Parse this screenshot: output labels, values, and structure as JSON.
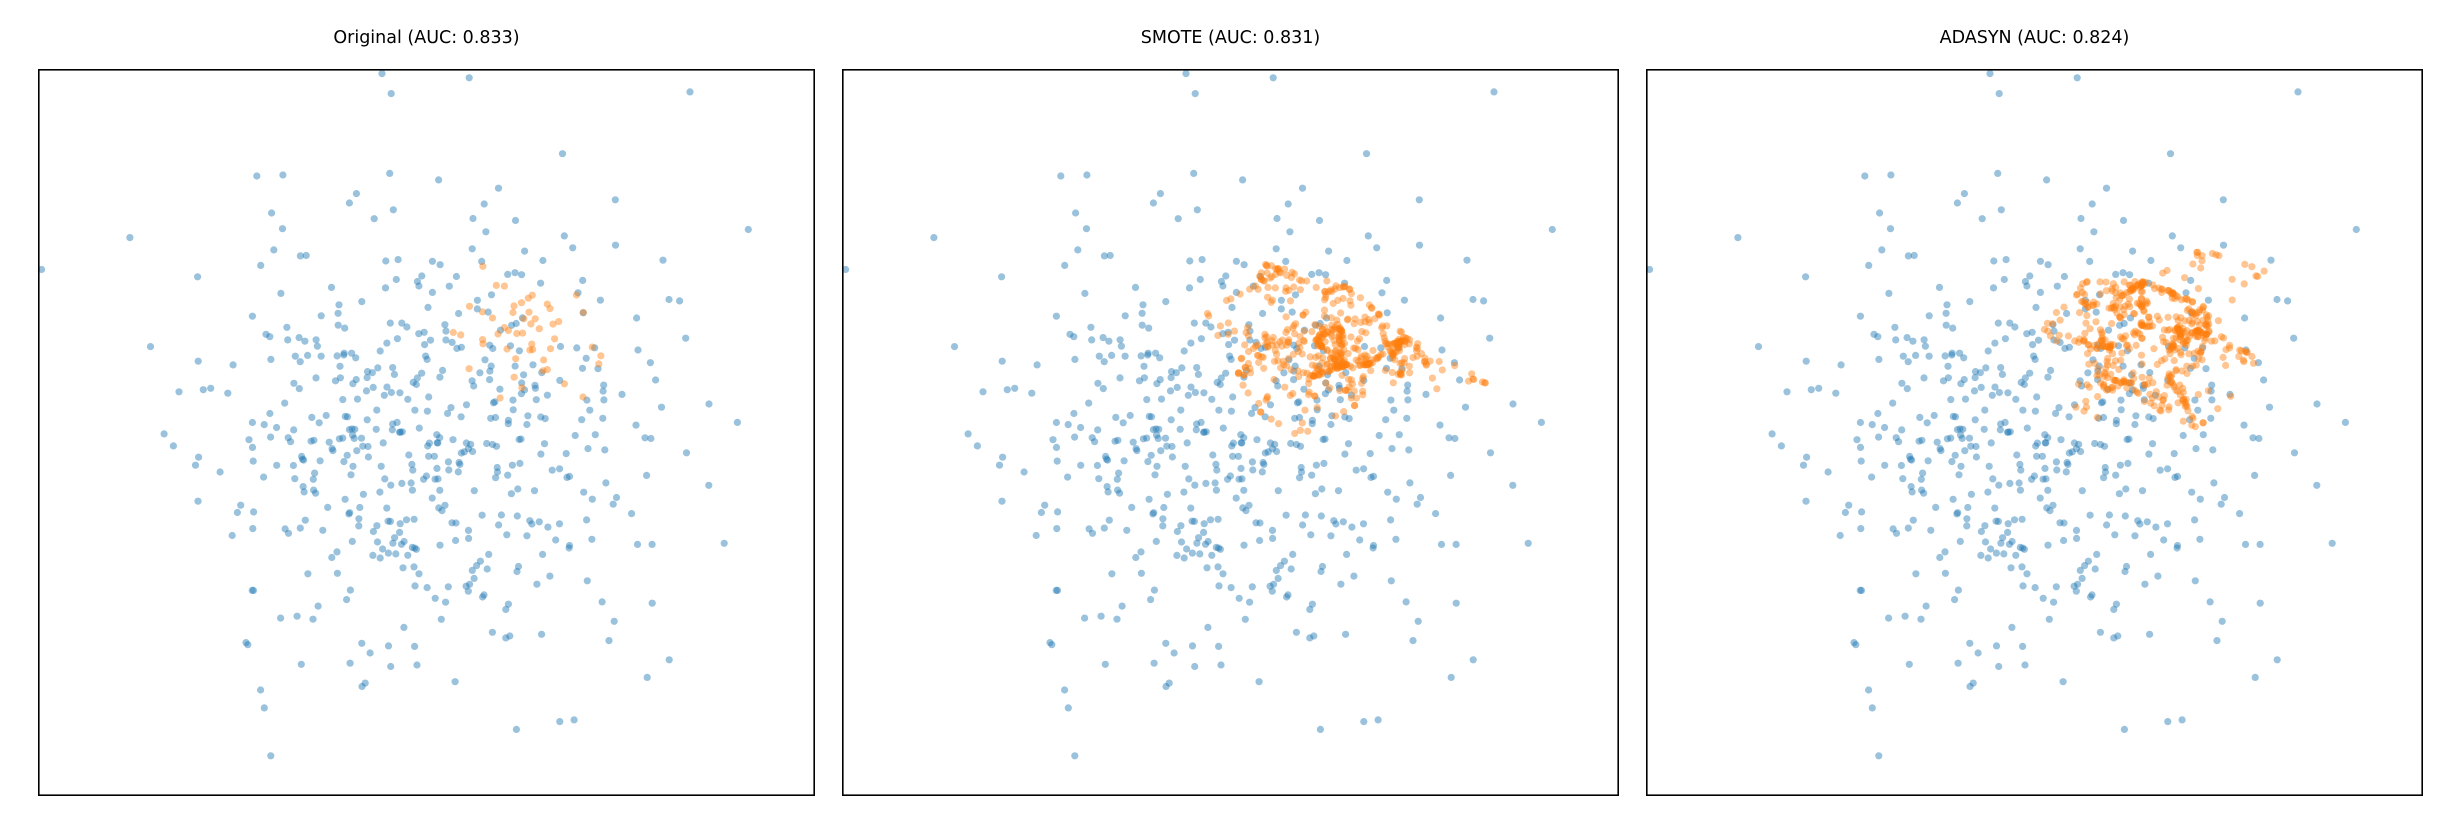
{
  "figure": {
    "panel_titles": [
      "Original (AUC: 0.833)",
      "SMOTE (AUC: 0.831)",
      "ADASYN (AUC: 0.824)"
    ]
  },
  "chart_data": [
    {
      "type": "scatter",
      "title": "Original (AUC: 0.833)",
      "xlim": [
        -3.5,
        3.5
      ],
      "ylim": [
        -3.2,
        3.2
      ],
      "axes_visible": false,
      "grid": false,
      "legend": "none",
      "series": [
        {
          "color": "#1f77b4",
          "alpha": 0.45,
          "count": 500,
          "cluster": {
            "center": [
              0.0,
              0.0
            ],
            "spread": [
              1.0,
              1.0
            ]
          },
          "seed": 11
        },
        {
          "color": "#ff7f0e",
          "alpha": 0.45,
          "count": 50,
          "cluster": {
            "center": [
              0.8,
              0.85
            ],
            "spread": [
              0.35,
              0.3
            ]
          },
          "seed": 23
        }
      ]
    },
    {
      "type": "scatter",
      "title": "SMOTE (AUC: 0.831)",
      "xlim": [
        -3.5,
        3.5
      ],
      "ylim": [
        -3.2,
        3.2
      ],
      "axes_visible": false,
      "grid": false,
      "legend": "none",
      "series": [
        {
          "color": "#1f77b4",
          "alpha": 0.45,
          "count": 500,
          "cluster": {
            "center": [
              0.0,
              0.0
            ],
            "spread": [
              1.0,
              1.0
            ]
          },
          "seed": 11
        },
        {
          "color": "#ff7f0e",
          "alpha": 0.45,
          "count": 500,
          "cluster": {
            "center": [
              1.0,
              0.85
            ],
            "spread": [
              0.45,
              0.35
            ]
          },
          "interpolated": true,
          "seed": 37
        }
      ]
    },
    {
      "type": "scatter",
      "title": "ADASYN (AUC: 0.824)",
      "xlim": [
        -3.5,
        3.5
      ],
      "ylim": [
        -3.2,
        3.2
      ],
      "axes_visible": false,
      "grid": false,
      "legend": "none",
      "series": [
        {
          "color": "#1f77b4",
          "alpha": 0.45,
          "count": 500,
          "cluster": {
            "center": [
              0.0,
              0.0
            ],
            "spread": [
              1.0,
              1.0
            ]
          },
          "seed": 11
        },
        {
          "color": "#ff7f0e",
          "alpha": 0.45,
          "count": 500,
          "cluster": {
            "center": [
              1.05,
              0.8
            ],
            "spread": [
              0.45,
              0.35
            ]
          },
          "interpolated": true,
          "seed": 53
        }
      ]
    }
  ]
}
